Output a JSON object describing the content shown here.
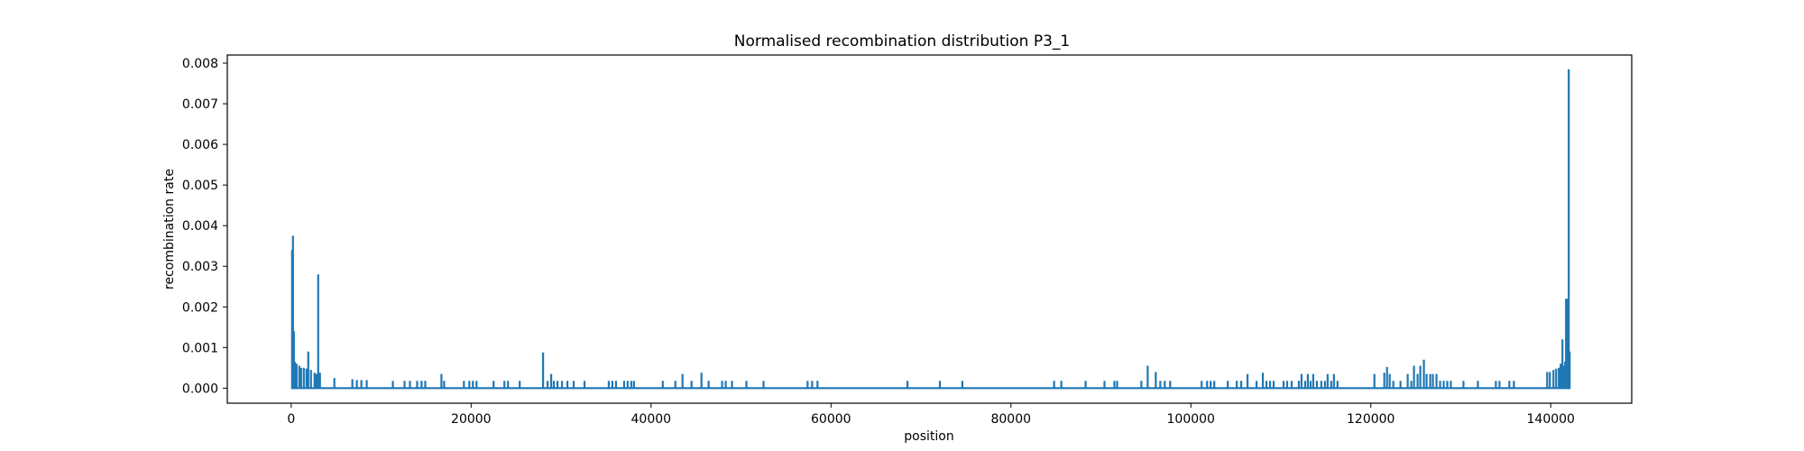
{
  "chart_data": {
    "type": "line",
    "title": "Normalised recombination distribution P3_1",
    "xlabel": "position",
    "ylabel": "recombination rate",
    "xlim": [
      -7100,
      149000
    ],
    "ylim": [
      -0.00037,
      0.0082
    ],
    "x_ticks": [
      0,
      20000,
      40000,
      60000,
      80000,
      100000,
      120000,
      140000
    ],
    "x_tick_labels": [
      "0",
      "20000",
      "40000",
      "60000",
      "80000",
      "100000",
      "120000",
      "140000"
    ],
    "y_ticks": [
      0,
      0.001,
      0.002,
      0.003,
      0.004,
      0.005,
      0.006,
      0.007,
      0.008
    ],
    "y_tick_labels": [
      "0.000",
      "0.001",
      "0.002",
      "0.003",
      "0.004",
      "0.005",
      "0.006",
      "0.007",
      "0.008"
    ],
    "grid": false,
    "series_color": "#1f77b4",
    "x_range": [
      0,
      142000
    ],
    "peaks": [
      [
        100,
        0.0034
      ],
      [
        200,
        0.00375
      ],
      [
        300,
        0.0014
      ],
      [
        400,
        0.00065
      ],
      [
        600,
        0.0006
      ],
      [
        900,
        0.00055
      ],
      [
        1100,
        0.0005
      ],
      [
        1400,
        0.0005
      ],
      [
        1700,
        0.00048
      ],
      [
        1900,
        0.0009
      ],
      [
        2200,
        0.00045
      ],
      [
        2600,
        0.00038
      ],
      [
        2800,
        0.00035
      ],
      [
        3000,
        0.0028
      ],
      [
        3200,
        0.00038
      ],
      [
        4800,
        0.00025
      ],
      [
        6800,
        0.00022
      ],
      [
        7300,
        0.0002
      ],
      [
        7800,
        0.0002
      ],
      [
        8400,
        0.0002
      ],
      [
        11300,
        0.00018
      ],
      [
        12600,
        0.00018
      ],
      [
        13200,
        0.00018
      ],
      [
        14000,
        0.00018
      ],
      [
        14500,
        0.00018
      ],
      [
        14900,
        0.00018
      ],
      [
        16700,
        0.00035
      ],
      [
        17000,
        0.00018
      ],
      [
        19200,
        0.00018
      ],
      [
        19800,
        0.00018
      ],
      [
        20200,
        0.00018
      ],
      [
        20600,
        0.00018
      ],
      [
        22500,
        0.00018
      ],
      [
        23700,
        0.00018
      ],
      [
        24100,
        0.00018
      ],
      [
        25400,
        0.00018
      ],
      [
        28000,
        0.00088
      ],
      [
        28500,
        0.00018
      ],
      [
        28900,
        0.00035
      ],
      [
        29200,
        0.00018
      ],
      [
        29600,
        0.00018
      ],
      [
        30100,
        0.00018
      ],
      [
        30700,
        0.00018
      ],
      [
        31400,
        0.00018
      ],
      [
        32600,
        0.00018
      ],
      [
        35300,
        0.00018
      ],
      [
        35700,
        0.00018
      ],
      [
        36100,
        0.00018
      ],
      [
        37000,
        0.00018
      ],
      [
        37400,
        0.00018
      ],
      [
        37800,
        0.00018
      ],
      [
        38100,
        0.00018
      ],
      [
        41300,
        0.00018
      ],
      [
        42700,
        0.00018
      ],
      [
        43500,
        0.00035
      ],
      [
        44500,
        0.00018
      ],
      [
        45600,
        0.00038
      ],
      [
        46400,
        0.00018
      ],
      [
        47900,
        0.00018
      ],
      [
        48300,
        0.00018
      ],
      [
        49000,
        0.00018
      ],
      [
        50600,
        0.00018
      ],
      [
        52500,
        0.00018
      ],
      [
        57400,
        0.00018
      ],
      [
        57900,
        0.00018
      ],
      [
        58500,
        0.00018
      ],
      [
        68500,
        0.00018
      ],
      [
        72100,
        0.00018
      ],
      [
        74600,
        0.00018
      ],
      [
        84800,
        0.00018
      ],
      [
        85600,
        0.00018
      ],
      [
        88300,
        0.00018
      ],
      [
        90400,
        0.00018
      ],
      [
        91500,
        0.00018
      ],
      [
        91800,
        0.00018
      ],
      [
        94500,
        0.00018
      ],
      [
        95200,
        0.00055
      ],
      [
        96100,
        0.0004
      ],
      [
        96600,
        0.00018
      ],
      [
        97100,
        0.00018
      ],
      [
        97700,
        0.00018
      ],
      [
        101200,
        0.00018
      ],
      [
        101800,
        0.00018
      ],
      [
        102200,
        0.00018
      ],
      [
        102600,
        0.00018
      ],
      [
        104100,
        0.00018
      ],
      [
        105100,
        0.00018
      ],
      [
        105600,
        0.00018
      ],
      [
        106300,
        0.00035
      ],
      [
        107300,
        0.00018
      ],
      [
        108000,
        0.00038
      ],
      [
        108400,
        0.00018
      ],
      [
        108800,
        0.00018
      ],
      [
        109200,
        0.00018
      ],
      [
        110300,
        0.00018
      ],
      [
        110700,
        0.00018
      ],
      [
        111200,
        0.00018
      ],
      [
        112000,
        0.00018
      ],
      [
        112300,
        0.00035
      ],
      [
        112700,
        0.00018
      ],
      [
        113000,
        0.00035
      ],
      [
        113300,
        0.00018
      ],
      [
        113600,
        0.00035
      ],
      [
        114000,
        0.00018
      ],
      [
        114500,
        0.00018
      ],
      [
        114900,
        0.00018
      ],
      [
        115200,
        0.00035
      ],
      [
        115600,
        0.00018
      ],
      [
        115900,
        0.00035
      ],
      [
        116300,
        0.00018
      ],
      [
        120400,
        0.00035
      ],
      [
        121500,
        0.00038
      ],
      [
        121800,
        0.00052
      ],
      [
        122100,
        0.00035
      ],
      [
        122500,
        0.00018
      ],
      [
        123300,
        0.00018
      ],
      [
        124100,
        0.00035
      ],
      [
        124500,
        0.00018
      ],
      [
        124800,
        0.00055
      ],
      [
        125200,
        0.00035
      ],
      [
        125500,
        0.00055
      ],
      [
        125900,
        0.0007
      ],
      [
        126200,
        0.00035
      ],
      [
        126600,
        0.00035
      ],
      [
        126900,
        0.00035
      ],
      [
        127300,
        0.00035
      ],
      [
        127700,
        0.00018
      ],
      [
        128100,
        0.00018
      ],
      [
        128500,
        0.00018
      ],
      [
        128900,
        0.00018
      ],
      [
        130300,
        0.00018
      ],
      [
        131900,
        0.00018
      ],
      [
        133900,
        0.00018
      ],
      [
        134300,
        0.00018
      ],
      [
        135400,
        0.00018
      ],
      [
        135900,
        0.00018
      ],
      [
        139600,
        0.0004
      ],
      [
        139900,
        0.0004
      ],
      [
        140300,
        0.00045
      ],
      [
        140600,
        0.00048
      ],
      [
        140900,
        0.0005
      ],
      [
        141100,
        0.0006
      ],
      [
        141300,
        0.0012
      ],
      [
        141500,
        0.00055
      ],
      [
        141600,
        0.00065
      ],
      [
        141700,
        0.0022
      ],
      [
        141900,
        0.0022
      ],
      [
        142000,
        0.00785
      ],
      [
        142100,
        0.0009
      ]
    ]
  }
}
